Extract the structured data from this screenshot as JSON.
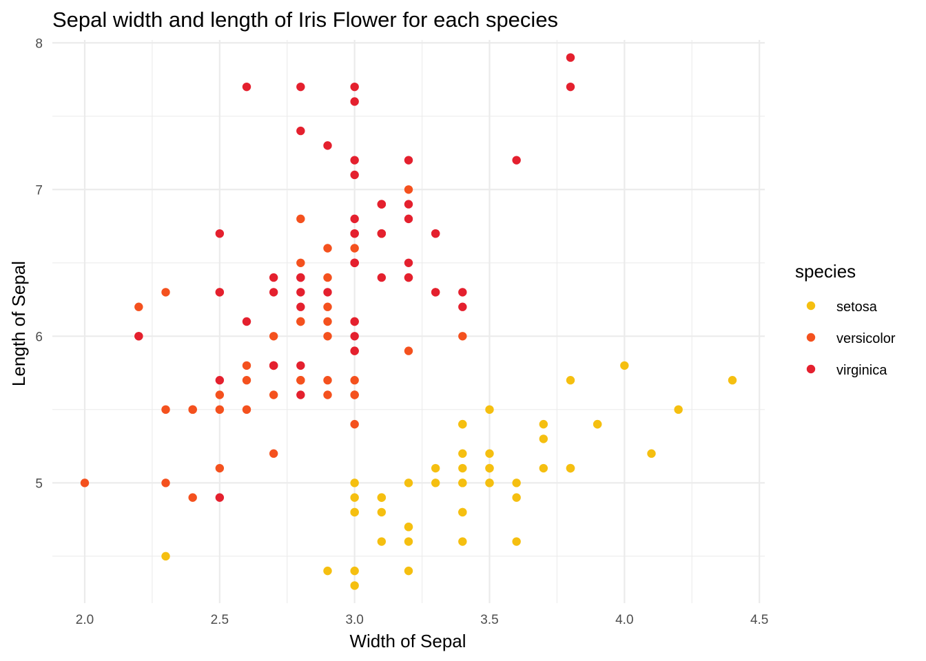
{
  "chart_data": {
    "type": "scatter",
    "title": "Sepal width and length of Iris Flower for each species",
    "xlabel": "Width of Sepal",
    "ylabel": "Length of Sepal",
    "xlim": [
      1.88,
      4.52
    ],
    "ylim": [
      4.18,
      8.02
    ],
    "xticks": [
      2.0,
      2.5,
      3.0,
      3.5,
      4.0,
      4.5
    ],
    "xtick_labels": [
      "2.0",
      "2.5",
      "3.0",
      "3.5",
      "4.0",
      "4.5"
    ],
    "yticks": [
      5,
      6,
      7,
      8
    ],
    "ytick_labels": [
      "5",
      "6",
      "7",
      "8"
    ],
    "grid": true,
    "legend": {
      "title": "species",
      "position": "right"
    },
    "series": [
      {
        "name": "setosa",
        "color": "#F5BF10",
        "points": [
          [
            3.5,
            5.1
          ],
          [
            3.0,
            4.9
          ],
          [
            3.2,
            4.7
          ],
          [
            3.1,
            4.6
          ],
          [
            3.6,
            5.0
          ],
          [
            3.9,
            5.4
          ],
          [
            3.4,
            4.6
          ],
          [
            3.4,
            5.0
          ],
          [
            2.9,
            4.4
          ],
          [
            3.1,
            4.9
          ],
          [
            3.7,
            5.4
          ],
          [
            3.4,
            4.8
          ],
          [
            3.0,
            4.8
          ],
          [
            3.0,
            4.3
          ],
          [
            4.0,
            5.8
          ],
          [
            4.4,
            5.7
          ],
          [
            3.9,
            5.4
          ],
          [
            3.5,
            5.1
          ],
          [
            3.8,
            5.7
          ],
          [
            3.8,
            5.1
          ],
          [
            3.4,
            5.4
          ],
          [
            3.7,
            5.1
          ],
          [
            3.6,
            4.6
          ],
          [
            3.3,
            5.1
          ],
          [
            3.4,
            4.8
          ],
          [
            3.0,
            5.0
          ],
          [
            3.4,
            5.0
          ],
          [
            3.5,
            5.2
          ],
          [
            3.4,
            5.2
          ],
          [
            3.2,
            4.7
          ],
          [
            3.1,
            4.8
          ],
          [
            3.4,
            5.4
          ],
          [
            4.1,
            5.2
          ],
          [
            4.2,
            5.5
          ],
          [
            3.1,
            4.9
          ],
          [
            3.2,
            5.0
          ],
          [
            3.5,
            5.5
          ],
          [
            3.6,
            4.9
          ],
          [
            3.0,
            4.4
          ],
          [
            3.4,
            5.1
          ],
          [
            3.5,
            5.0
          ],
          [
            2.3,
            4.5
          ],
          [
            3.2,
            4.4
          ],
          [
            3.5,
            5.0
          ],
          [
            3.8,
            5.1
          ],
          [
            3.0,
            4.8
          ],
          [
            3.8,
            5.1
          ],
          [
            3.2,
            4.6
          ],
          [
            3.7,
            5.3
          ],
          [
            3.3,
            5.0
          ]
        ]
      },
      {
        "name": "versicolor",
        "color": "#F4511E",
        "points": [
          [
            3.2,
            7.0
          ],
          [
            3.2,
            6.4
          ],
          [
            3.1,
            6.9
          ],
          [
            2.3,
            5.5
          ],
          [
            2.8,
            6.5
          ],
          [
            2.8,
            5.7
          ],
          [
            3.3,
            6.3
          ],
          [
            2.4,
            4.9
          ],
          [
            2.9,
            6.6
          ],
          [
            2.7,
            5.2
          ],
          [
            2.0,
            5.0
          ],
          [
            3.0,
            5.9
          ],
          [
            2.2,
            6.0
          ],
          [
            2.9,
            6.1
          ],
          [
            2.9,
            5.6
          ],
          [
            3.1,
            6.7
          ],
          [
            3.0,
            5.6
          ],
          [
            2.7,
            5.8
          ],
          [
            2.2,
            6.2
          ],
          [
            2.5,
            5.6
          ],
          [
            3.2,
            5.9
          ],
          [
            2.8,
            6.1
          ],
          [
            2.5,
            6.3
          ],
          [
            2.8,
            6.1
          ],
          [
            2.9,
            6.4
          ],
          [
            3.0,
            6.6
          ],
          [
            2.8,
            6.8
          ],
          [
            3.0,
            6.7
          ],
          [
            2.9,
            6.0
          ],
          [
            2.6,
            5.7
          ],
          [
            2.4,
            5.5
          ],
          [
            2.4,
            5.5
          ],
          [
            2.7,
            5.8
          ],
          [
            2.7,
            6.0
          ],
          [
            3.0,
            5.4
          ],
          [
            3.4,
            6.0
          ],
          [
            3.1,
            6.7
          ],
          [
            2.3,
            6.3
          ],
          [
            3.0,
            5.6
          ],
          [
            2.5,
            5.5
          ],
          [
            2.6,
            5.5
          ],
          [
            3.0,
            6.1
          ],
          [
            2.6,
            5.8
          ],
          [
            2.3,
            5.0
          ],
          [
            2.7,
            5.6
          ],
          [
            3.0,
            5.7
          ],
          [
            2.9,
            5.7
          ],
          [
            2.9,
            6.2
          ],
          [
            2.5,
            5.1
          ],
          [
            2.8,
            5.7
          ]
        ]
      },
      {
        "name": "virginica",
        "color": "#E4202E",
        "points": [
          [
            3.3,
            6.3
          ],
          [
            2.7,
            5.8
          ],
          [
            3.0,
            7.1
          ],
          [
            2.9,
            6.3
          ],
          [
            3.0,
            6.5
          ],
          [
            3.0,
            7.6
          ],
          [
            2.5,
            4.9
          ],
          [
            2.9,
            7.3
          ],
          [
            2.5,
            6.7
          ],
          [
            3.6,
            7.2
          ],
          [
            3.2,
            6.5
          ],
          [
            2.7,
            6.4
          ],
          [
            3.0,
            6.8
          ],
          [
            2.5,
            5.7
          ],
          [
            2.8,
            5.8
          ],
          [
            3.2,
            6.4
          ],
          [
            3.0,
            6.5
          ],
          [
            3.8,
            7.7
          ],
          [
            2.6,
            7.7
          ],
          [
            2.2,
            6.0
          ],
          [
            3.2,
            6.9
          ],
          [
            2.8,
            5.6
          ],
          [
            2.8,
            7.7
          ],
          [
            2.7,
            6.3
          ],
          [
            3.3,
            6.7
          ],
          [
            3.2,
            7.2
          ],
          [
            2.8,
            6.2
          ],
          [
            3.0,
            6.1
          ],
          [
            2.8,
            6.4
          ],
          [
            3.0,
            7.2
          ],
          [
            2.8,
            7.4
          ],
          [
            3.8,
            7.9
          ],
          [
            2.8,
            6.4
          ],
          [
            2.8,
            6.3
          ],
          [
            2.6,
            6.1
          ],
          [
            3.0,
            7.7
          ],
          [
            3.4,
            6.3
          ],
          [
            3.1,
            6.4
          ],
          [
            3.0,
            6.0
          ],
          [
            3.1,
            6.9
          ],
          [
            3.1,
            6.7
          ],
          [
            3.1,
            6.9
          ],
          [
            2.7,
            5.8
          ],
          [
            3.2,
            6.8
          ],
          [
            3.3,
            6.7
          ],
          [
            3.0,
            6.7
          ],
          [
            2.5,
            6.3
          ],
          [
            3.0,
            6.5
          ],
          [
            3.4,
            6.2
          ],
          [
            3.0,
            5.9
          ]
        ]
      }
    ]
  }
}
